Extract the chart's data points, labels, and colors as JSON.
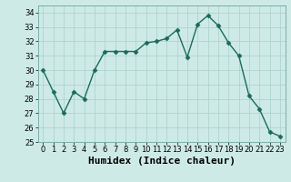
{
  "x": [
    0,
    1,
    2,
    3,
    4,
    5,
    6,
    7,
    8,
    9,
    10,
    11,
    12,
    13,
    14,
    15,
    16,
    17,
    18,
    19,
    20,
    21,
    22,
    23
  ],
  "y": [
    30.0,
    28.5,
    27.0,
    28.5,
    28.0,
    30.0,
    31.3,
    31.3,
    31.3,
    31.3,
    31.9,
    32.0,
    32.2,
    32.8,
    30.9,
    33.2,
    33.8,
    33.1,
    31.9,
    31.0,
    28.2,
    27.3,
    25.7,
    25.4
  ],
  "line_color": "#1a6b5a",
  "marker": "D",
  "marker_size": 2.5,
  "bg_color": "#ceeae6",
  "grid_color": "#aed4ce",
  "xlabel": "Humidex (Indice chaleur)",
  "xlim": [
    -0.5,
    23.5
  ],
  "ylim": [
    25,
    34.5
  ],
  "yticks": [
    25,
    26,
    27,
    28,
    29,
    30,
    31,
    32,
    33,
    34
  ],
  "xticks": [
    0,
    1,
    2,
    3,
    4,
    5,
    6,
    7,
    8,
    9,
    10,
    11,
    12,
    13,
    14,
    15,
    16,
    17,
    18,
    19,
    20,
    21,
    22,
    23
  ],
  "tick_fontsize": 6,
  "xlabel_fontsize": 8,
  "line_width": 1.0
}
